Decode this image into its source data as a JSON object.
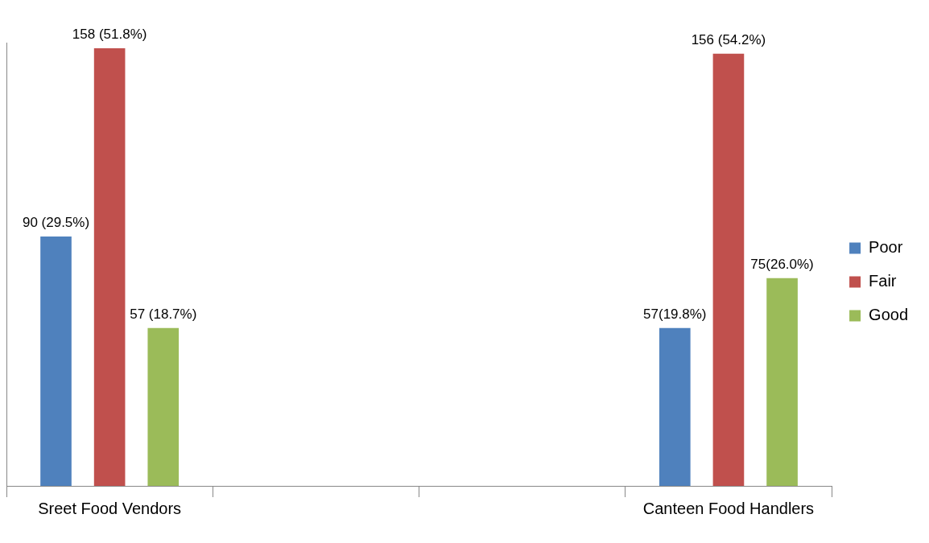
{
  "chart_data": {
    "type": "bar",
    "categories": [
      "Sreet Food Vendors",
      null,
      null,
      "Canteen Food Handlers"
    ],
    "series": [
      {
        "name": "Poor",
        "color": "#4f81bd",
        "values": [
          90,
          null,
          null,
          57
        ],
        "value_labels": [
          "90 (29.5%)",
          null,
          null,
          "57(19.8%)"
        ]
      },
      {
        "name": "Fair",
        "color": "#c0504d",
        "values": [
          158,
          null,
          null,
          156
        ],
        "value_labels": [
          "158 (51.8%)",
          null,
          null,
          "156 (54.2%)"
        ]
      },
      {
        "name": "Good",
        "color": "#9bbb59",
        "values": [
          57,
          null,
          null,
          75
        ],
        "value_labels": [
          "57 (18.7%)",
          null,
          null,
          "75(26.0%)"
        ]
      }
    ],
    "legend": "right",
    "grid": false
  }
}
